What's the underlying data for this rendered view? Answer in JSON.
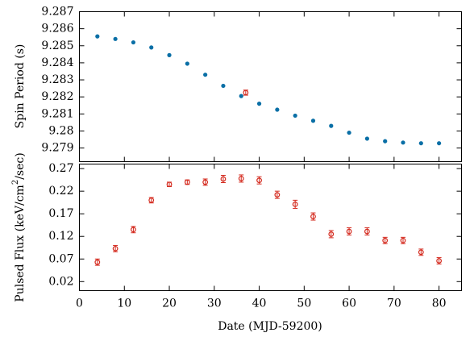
{
  "chart_data": [
    {
      "type": "scatter",
      "panel": "top",
      "ylabel": "Spin Period (s)",
      "xlim": [
        0,
        85
      ],
      "ylim": [
        9.2782,
        9.287
      ],
      "yticks": [
        9.279,
        9.28,
        9.281,
        9.282,
        9.283,
        9.284,
        9.285,
        9.286,
        9.287
      ],
      "ytick_labels": [
        "9.279",
        "9.28",
        "9.281",
        "9.282",
        "9.283",
        "9.284",
        "9.285",
        "9.286",
        "9.287"
      ],
      "grid": false,
      "series": [
        {
          "marker": "dot",
          "color": "#0a6fa6",
          "x": [
            4,
            8,
            12,
            16,
            20,
            24,
            28,
            32,
            36,
            40,
            44,
            48,
            52,
            56,
            60,
            64,
            68,
            72,
            76,
            80
          ],
          "y": [
            9.28555,
            9.2854,
            9.2852,
            9.2849,
            9.28445,
            9.28395,
            9.2833,
            9.28265,
            9.28205,
            9.2816,
            9.28125,
            9.2809,
            9.2806,
            9.2803,
            9.2799,
            9.27955,
            9.2794,
            9.27932,
            9.27928,
            9.27928
          ]
        },
        {
          "marker": "open-circle-errorbar",
          "color": "#d42a1e",
          "x": [
            37
          ],
          "y": [
            9.28225
          ],
          "yerr": [
            0.00015
          ]
        }
      ]
    },
    {
      "type": "scatter",
      "panel": "bottom",
      "xlabel": "Date (MJD-59200)",
      "ylabel_parts": {
        "before": "Pulsed Flux (keV/cm",
        "sup": "2",
        "after": "/sec)"
      },
      "xlim": [
        0,
        85
      ],
      "ylim": [
        0,
        0.28
      ],
      "xticks": [
        0,
        10,
        20,
        30,
        40,
        50,
        60,
        70,
        80
      ],
      "xtick_labels": [
        "0",
        "10",
        "20",
        "30",
        "40",
        "50",
        "60",
        "70",
        "80"
      ],
      "yticks": [
        0.02,
        0.07,
        0.12,
        0.17,
        0.22,
        0.27
      ],
      "ytick_labels": [
        "0.02",
        "0.07",
        "0.12",
        "0.17",
        "0.22",
        "0.27"
      ],
      "grid": false,
      "series": [
        {
          "marker": "open-circle-errorbar",
          "color": "#d42a1e",
          "x": [
            4,
            8,
            12,
            16,
            20,
            24,
            28,
            32,
            36,
            40,
            44,
            48,
            52,
            56,
            60,
            64,
            68,
            72,
            76,
            80
          ],
          "y": [
            0.063,
            0.093,
            0.135,
            0.2,
            0.235,
            0.24,
            0.24,
            0.247,
            0.248,
            0.244,
            0.212,
            0.191,
            0.164,
            0.125,
            0.131,
            0.131,
            0.111,
            0.111,
            0.085,
            0.066
          ],
          "yerr": [
            0.007,
            0.007,
            0.007,
            0.006,
            0.005,
            0.005,
            0.007,
            0.008,
            0.008,
            0.008,
            0.008,
            0.009,
            0.008,
            0.008,
            0.008,
            0.008,
            0.007,
            0.007,
            0.007,
            0.007
          ]
        }
      ]
    }
  ]
}
